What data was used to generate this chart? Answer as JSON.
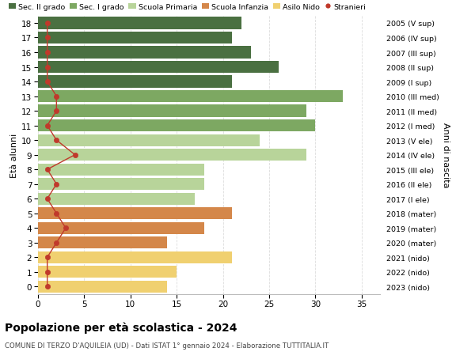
{
  "ages": [
    18,
    17,
    16,
    15,
    14,
    13,
    12,
    11,
    10,
    9,
    8,
    7,
    6,
    5,
    4,
    3,
    2,
    1,
    0
  ],
  "bar_values": [
    22,
    21,
    23,
    26,
    21,
    33,
    29,
    30,
    24,
    29,
    18,
    18,
    17,
    21,
    18,
    14,
    21,
    15,
    14
  ],
  "stranieri": [
    1,
    1,
    1,
    1,
    1,
    2,
    2,
    1,
    2,
    4,
    1,
    2,
    1,
    2,
    3,
    2,
    1,
    1,
    1
  ],
  "right_labels": [
    "2005 (V sup)",
    "2006 (IV sup)",
    "2007 (III sup)",
    "2008 (II sup)",
    "2009 (I sup)",
    "2010 (III med)",
    "2011 (II med)",
    "2012 (I med)",
    "2013 (V ele)",
    "2014 (IV ele)",
    "2015 (III ele)",
    "2016 (II ele)",
    "2017 (I ele)",
    "2018 (mater)",
    "2019 (mater)",
    "2020 (mater)",
    "2021 (nido)",
    "2022 (nido)",
    "2023 (nido)"
  ],
  "bar_colors": [
    "#4a7041",
    "#4a7041",
    "#4a7041",
    "#4a7041",
    "#4a7041",
    "#7da862",
    "#7da862",
    "#7da862",
    "#b8d49a",
    "#b8d49a",
    "#b8d49a",
    "#b8d49a",
    "#b8d49a",
    "#d4874a",
    "#d4874a",
    "#d4874a",
    "#f0d070",
    "#f0d070",
    "#f0d070"
  ],
  "legend_labels": [
    "Sec. II grado",
    "Sec. I grado",
    "Scuola Primaria",
    "Scuola Infanzia",
    "Asilo Nido",
    "Stranieri"
  ],
  "legend_colors": [
    "#4a7041",
    "#7da862",
    "#b8d49a",
    "#d4874a",
    "#f0d070",
    "#c0392b"
  ],
  "stranieri_color": "#c0392b",
  "title": "Popolazione per età scolastica - 2024",
  "subtitle": "COMUNE DI TERZO D'AQUILEIA (UD) - Dati ISTAT 1° gennaio 2024 - Elaborazione TUTTITALIA.IT",
  "ylabel": "Età alunni",
  "right_ylabel": "Anni di nascita",
  "xlabel_vals": [
    0,
    5,
    10,
    15,
    20,
    25,
    30,
    35
  ],
  "xlim": [
    0,
    37
  ],
  "ylim": [
    -0.5,
    18.5
  ],
  "background_color": "#ffffff",
  "grid_color": "#dddddd"
}
